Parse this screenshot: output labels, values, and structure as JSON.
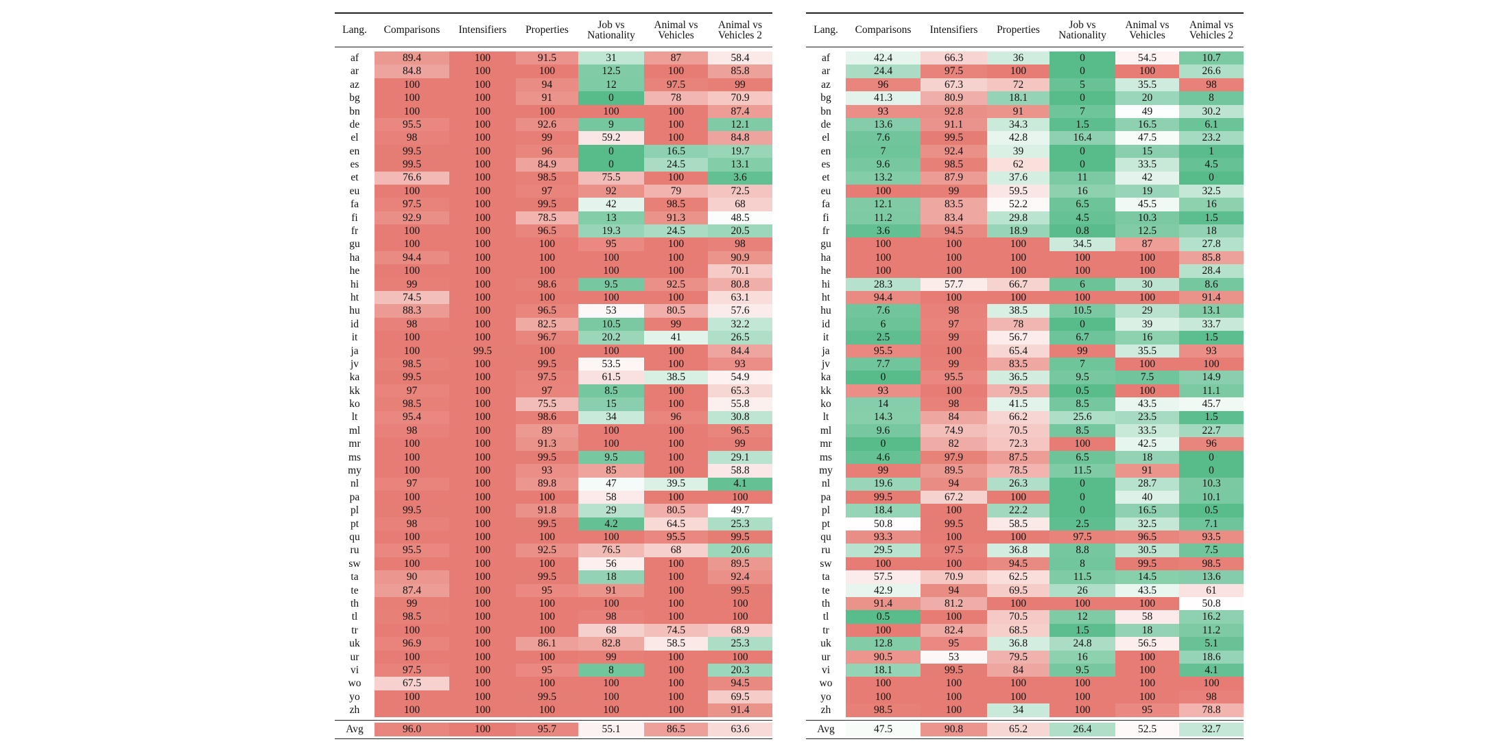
{
  "chart_data": [
    {
      "type": "heatmap",
      "columns": [
        "Lang.",
        "Comparisons",
        "Intensifiers",
        "Properties",
        "Job vs\nNationality",
        "Animal vs\nVehicles",
        "Animal vs\nVehicles 2"
      ],
      "rows": [
        [
          "af",
          "89.4",
          "100",
          "91.5",
          "31",
          "87",
          "58.4"
        ],
        [
          "ar",
          "84.8",
          "100",
          "100",
          "12.5",
          "100",
          "85.8"
        ],
        [
          "az",
          "100",
          "100",
          "94",
          "12",
          "97.5",
          "99"
        ],
        [
          "bg",
          "100",
          "100",
          "91",
          "0",
          "78",
          "70.9"
        ],
        [
          "bn",
          "100",
          "100",
          "100",
          "100",
          "100",
          "87.4"
        ],
        [
          "de",
          "95.5",
          "100",
          "92.6",
          "9",
          "100",
          "12.1"
        ],
        [
          "el",
          "98",
          "100",
          "99",
          "59.2",
          "100",
          "84.8"
        ],
        [
          "en",
          "99.5",
          "100",
          "96",
          "0",
          "16.5",
          "19.7"
        ],
        [
          "es",
          "99.5",
          "100",
          "84.9",
          "0",
          "24.5",
          "13.1"
        ],
        [
          "et",
          "76.6",
          "100",
          "98.5",
          "75.5",
          "100",
          "3.6"
        ],
        [
          "eu",
          "100",
          "100",
          "97",
          "92",
          "79",
          "72.5"
        ],
        [
          "fa",
          "97.5",
          "100",
          "99.5",
          "42",
          "98.5",
          "68"
        ],
        [
          "fi",
          "92.9",
          "100",
          "78.5",
          "13",
          "91.3",
          "48.5"
        ],
        [
          "fr",
          "100",
          "100",
          "96.5",
          "19.3",
          "24.5",
          "20.5"
        ],
        [
          "gu",
          "100",
          "100",
          "100",
          "95",
          "100",
          "98"
        ],
        [
          "ha",
          "94.4",
          "100",
          "100",
          "100",
          "100",
          "90.9"
        ],
        [
          "he",
          "100",
          "100",
          "100",
          "100",
          "100",
          "70.1"
        ],
        [
          "hi",
          "99",
          "100",
          "98.6",
          "9.5",
          "92.5",
          "80.8"
        ],
        [
          "ht",
          "74.5",
          "100",
          "100",
          "100",
          "100",
          "63.1"
        ],
        [
          "hu",
          "88.3",
          "100",
          "96.5",
          "53",
          "80.5",
          "57.6"
        ],
        [
          "id",
          "98",
          "100",
          "82.5",
          "10.5",
          "99",
          "32.2"
        ],
        [
          "it",
          "100",
          "100",
          "96.7",
          "20.2",
          "41",
          "26.5"
        ],
        [
          "ja",
          "100",
          "99.5",
          "100",
          "100",
          "100",
          "84.4"
        ],
        [
          "jv",
          "98.5",
          "100",
          "99.5",
          "53.5",
          "100",
          "93"
        ],
        [
          "ka",
          "99.5",
          "100",
          "97.5",
          "61.5",
          "38.5",
          "54.9"
        ],
        [
          "kk",
          "97",
          "100",
          "97",
          "8.5",
          "100",
          "65.3"
        ],
        [
          "ko",
          "98.5",
          "100",
          "75.5",
          "15",
          "100",
          "55.8"
        ],
        [
          "lt",
          "95.4",
          "100",
          "98.6",
          "34",
          "96",
          "30.8"
        ],
        [
          "ml",
          "98",
          "100",
          "89",
          "100",
          "100",
          "96.5"
        ],
        [
          "mr",
          "100",
          "100",
          "91.3",
          "100",
          "100",
          "99"
        ],
        [
          "ms",
          "100",
          "100",
          "99.5",
          "9.5",
          "100",
          "29.1"
        ],
        [
          "my",
          "100",
          "100",
          "93",
          "85",
          "100",
          "58.8"
        ],
        [
          "nl",
          "97",
          "100",
          "89.8",
          "47",
          "39.5",
          "4.1"
        ],
        [
          "pa",
          "100",
          "100",
          "100",
          "58",
          "100",
          "100"
        ],
        [
          "pl",
          "99.5",
          "100",
          "91.8",
          "29",
          "80.5",
          "49.7"
        ],
        [
          "pt",
          "98",
          "100",
          "99.5",
          "4.2",
          "64.5",
          "25.3"
        ],
        [
          "qu",
          "100",
          "100",
          "100",
          "100",
          "95.5",
          "99.5"
        ],
        [
          "ru",
          "95.5",
          "100",
          "92.5",
          "76.5",
          "68",
          "20.6"
        ],
        [
          "sw",
          "100",
          "100",
          "100",
          "56",
          "100",
          "89.5"
        ],
        [
          "ta",
          "90",
          "100",
          "99.5",
          "18",
          "100",
          "92.4"
        ],
        [
          "te",
          "87.4",
          "100",
          "95",
          "91",
          "100",
          "99.5"
        ],
        [
          "th",
          "99",
          "100",
          "100",
          "100",
          "100",
          "100"
        ],
        [
          "tl",
          "98.5",
          "100",
          "100",
          "98",
          "100",
          "100"
        ],
        [
          "tr",
          "100",
          "100",
          "100",
          "68",
          "74.5",
          "68.9"
        ],
        [
          "uk",
          "96.9",
          "100",
          "86.1",
          "82.8",
          "58.5",
          "25.3"
        ],
        [
          "ur",
          "100",
          "100",
          "100",
          "99",
          "100",
          "100"
        ],
        [
          "vi",
          "97.5",
          "100",
          "95",
          "8",
          "100",
          "20.3"
        ],
        [
          "wo",
          "67.5",
          "100",
          "100",
          "100",
          "100",
          "94.5"
        ],
        [
          "yo",
          "100",
          "100",
          "99.5",
          "100",
          "100",
          "69.5"
        ],
        [
          "zh",
          "100",
          "100",
          "100",
          "100",
          "100",
          "91.4"
        ]
      ],
      "avg": [
        "Avg",
        "96.0",
        "100",
        "95.7",
        "55.1",
        "86.5",
        "63.6"
      ]
    },
    {
      "type": "heatmap",
      "columns": [
        "Lang.",
        "Comparisons",
        "Intensifiers",
        "Properties",
        "Job vs\nNationality",
        "Animal vs\nVehicles",
        "Animal vs\nVehicles 2"
      ],
      "rows": [
        [
          "af",
          "42.4",
          "66.3",
          "36",
          "0",
          "54.5",
          "10.7"
        ],
        [
          "ar",
          "24.4",
          "97.5",
          "100",
          "0",
          "100",
          "26.6"
        ],
        [
          "az",
          "96",
          "67.3",
          "72",
          "5",
          "35.5",
          "98"
        ],
        [
          "bg",
          "41.3",
          "80.9",
          "18.1",
          "0",
          "20",
          "8"
        ],
        [
          "bn",
          "93",
          "92.8",
          "91",
          "7",
          "49",
          "30.2"
        ],
        [
          "de",
          "13.6",
          "91.1",
          "34.3",
          "1.5",
          "16.5",
          "6.1"
        ],
        [
          "el",
          "7.6",
          "99.5",
          "42.8",
          "16.4",
          "47.5",
          "23.2"
        ],
        [
          "en",
          "7",
          "92.4",
          "39",
          "0",
          "15",
          "1"
        ],
        [
          "es",
          "9.6",
          "98.5",
          "62",
          "0",
          "33.5",
          "4.5"
        ],
        [
          "et",
          "13.2",
          "87.9",
          "37.6",
          "11",
          "42",
          "0"
        ],
        [
          "eu",
          "100",
          "99",
          "59.5",
          "16",
          "19",
          "32.5"
        ],
        [
          "fa",
          "12.1",
          "83.5",
          "52.2",
          "6.5",
          "45.5",
          "16"
        ],
        [
          "fi",
          "11.2",
          "83.4",
          "29.8",
          "4.5",
          "10.3",
          "1.5"
        ],
        [
          "fr",
          "3.6",
          "94.5",
          "18.9",
          "0.8",
          "12.5",
          "18"
        ],
        [
          "gu",
          "100",
          "100",
          "100",
          "34.5",
          "87",
          "27.8"
        ],
        [
          "ha",
          "100",
          "100",
          "100",
          "100",
          "100",
          "85.8"
        ],
        [
          "he",
          "100",
          "100",
          "100",
          "100",
          "100",
          "28.4"
        ],
        [
          "hi",
          "28.3",
          "57.7",
          "66.7",
          "6",
          "30",
          "8.6"
        ],
        [
          "ht",
          "94.4",
          "100",
          "100",
          "100",
          "100",
          "91.4"
        ],
        [
          "hu",
          "7.6",
          "98",
          "38.5",
          "10.5",
          "29",
          "13.1"
        ],
        [
          "id",
          "6",
          "97",
          "78",
          "0",
          "39",
          "33.7"
        ],
        [
          "it",
          "2.5",
          "99",
          "56.7",
          "6.7",
          "16",
          "1.5"
        ],
        [
          "ja",
          "95.5",
          "100",
          "65.4",
          "99",
          "35.5",
          "93"
        ],
        [
          "jv",
          "7.7",
          "99",
          "83.5",
          "7",
          "100",
          "100"
        ],
        [
          "ka",
          "0",
          "95.5",
          "36.5",
          "9.5",
          "7.5",
          "14.9"
        ],
        [
          "kk",
          "93",
          "100",
          "79.5",
          "0.5",
          "100",
          "11.1"
        ],
        [
          "ko",
          "14",
          "98",
          "41.5",
          "8.5",
          "43.5",
          "45.7"
        ],
        [
          "lt",
          "14.3",
          "84",
          "66.2",
          "25.6",
          "23.5",
          "1.5"
        ],
        [
          "ml",
          "9.6",
          "74.9",
          "70.5",
          "8.5",
          "33.5",
          "22.7"
        ],
        [
          "mr",
          "0",
          "82",
          "72.3",
          "100",
          "42.5",
          "96"
        ],
        [
          "ms",
          "4.6",
          "97.9",
          "87.5",
          "6.5",
          "18",
          "0"
        ],
        [
          "my",
          "99",
          "89.5",
          "78.5",
          "11.5",
          "91",
          "0"
        ],
        [
          "nl",
          "19.6",
          "94",
          "26.3",
          "0",
          "28.7",
          "10.3"
        ],
        [
          "pa",
          "99.5",
          "67.2",
          "100",
          "0",
          "40",
          "10.1"
        ],
        [
          "pl",
          "18.4",
          "100",
          "22.2",
          "0",
          "16.5",
          "0.5"
        ],
        [
          "pt",
          "50.8",
          "99.5",
          "58.5",
          "2.5",
          "32.5",
          "7.1"
        ],
        [
          "qu",
          "93.3",
          "100",
          "100",
          "97.5",
          "96.5",
          "93.5"
        ],
        [
          "ru",
          "29.5",
          "97.5",
          "36.8",
          "8.8",
          "30.5",
          "7.5"
        ],
        [
          "sw",
          "100",
          "100",
          "94.5",
          "8",
          "99.5",
          "98.5"
        ],
        [
          "ta",
          "57.5",
          "70.9",
          "62.5",
          "11.5",
          "14.5",
          "13.6"
        ],
        [
          "te",
          "42.9",
          "94",
          "69.5",
          "26",
          "43.5",
          "61"
        ],
        [
          "th",
          "91.4",
          "81.2",
          "100",
          "100",
          "100",
          "50.8"
        ],
        [
          "tl",
          "0.5",
          "100",
          "70.5",
          "12",
          "58",
          "16.2"
        ],
        [
          "tr",
          "100",
          "82.4",
          "68.5",
          "1.5",
          "18",
          "11.2"
        ],
        [
          "uk",
          "12.8",
          "95",
          "36.8",
          "24.8",
          "56.5",
          "5.1"
        ],
        [
          "ur",
          "90.5",
          "53",
          "79.5",
          "16",
          "100",
          "18.6"
        ],
        [
          "vi",
          "18.1",
          "99.5",
          "84",
          "9.5",
          "100",
          "4.1"
        ],
        [
          "wo",
          "100",
          "100",
          "100",
          "100",
          "100",
          "100"
        ],
        [
          "yo",
          "100",
          "100",
          "100",
          "100",
          "100",
          "98"
        ],
        [
          "zh",
          "98.5",
          "100",
          "34",
          "100",
          "95",
          "78.8"
        ]
      ],
      "avg": [
        "Avg",
        "47.5",
        "90.8",
        "65.2",
        "26.4",
        "52.5",
        "32.7"
      ]
    }
  ],
  "colors": {
    "low": "#57bb8a",
    "mid": "#ffffff",
    "high": "#e67c73"
  }
}
